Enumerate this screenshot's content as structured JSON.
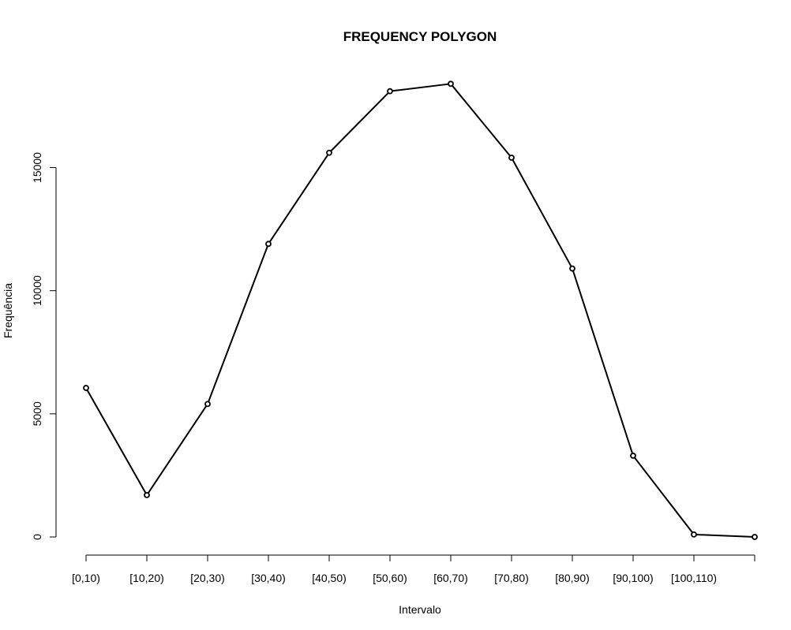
{
  "chart_data": {
    "type": "line",
    "title": "FREQUENCY POLYGON",
    "xlabel": "Intervalo",
    "ylabel": "Frequência",
    "categories": [
      "[0,10)",
      "[10,20)",
      "[20,30)",
      "[30,40)",
      "[40,50)",
      "[50,60)",
      "[60,70)",
      "[70,80)",
      "[80,90)",
      "[90,100)",
      "[100,110)",
      ""
    ],
    "series": [
      {
        "values": [
          6050,
          1700,
          5400,
          11900,
          15600,
          18100,
          18400,
          15400,
          10900,
          3300,
          100,
          0
        ]
      }
    ],
    "yticks": [
      0,
      5000,
      10000,
      15000
    ],
    "ytick_labels": [
      "0",
      "5000",
      "10000",
      "15000"
    ],
    "ylim": [
      0,
      18400
    ],
    "grid": false,
    "legend": "none",
    "line_color": "#000000",
    "marker": "open-circle"
  }
}
